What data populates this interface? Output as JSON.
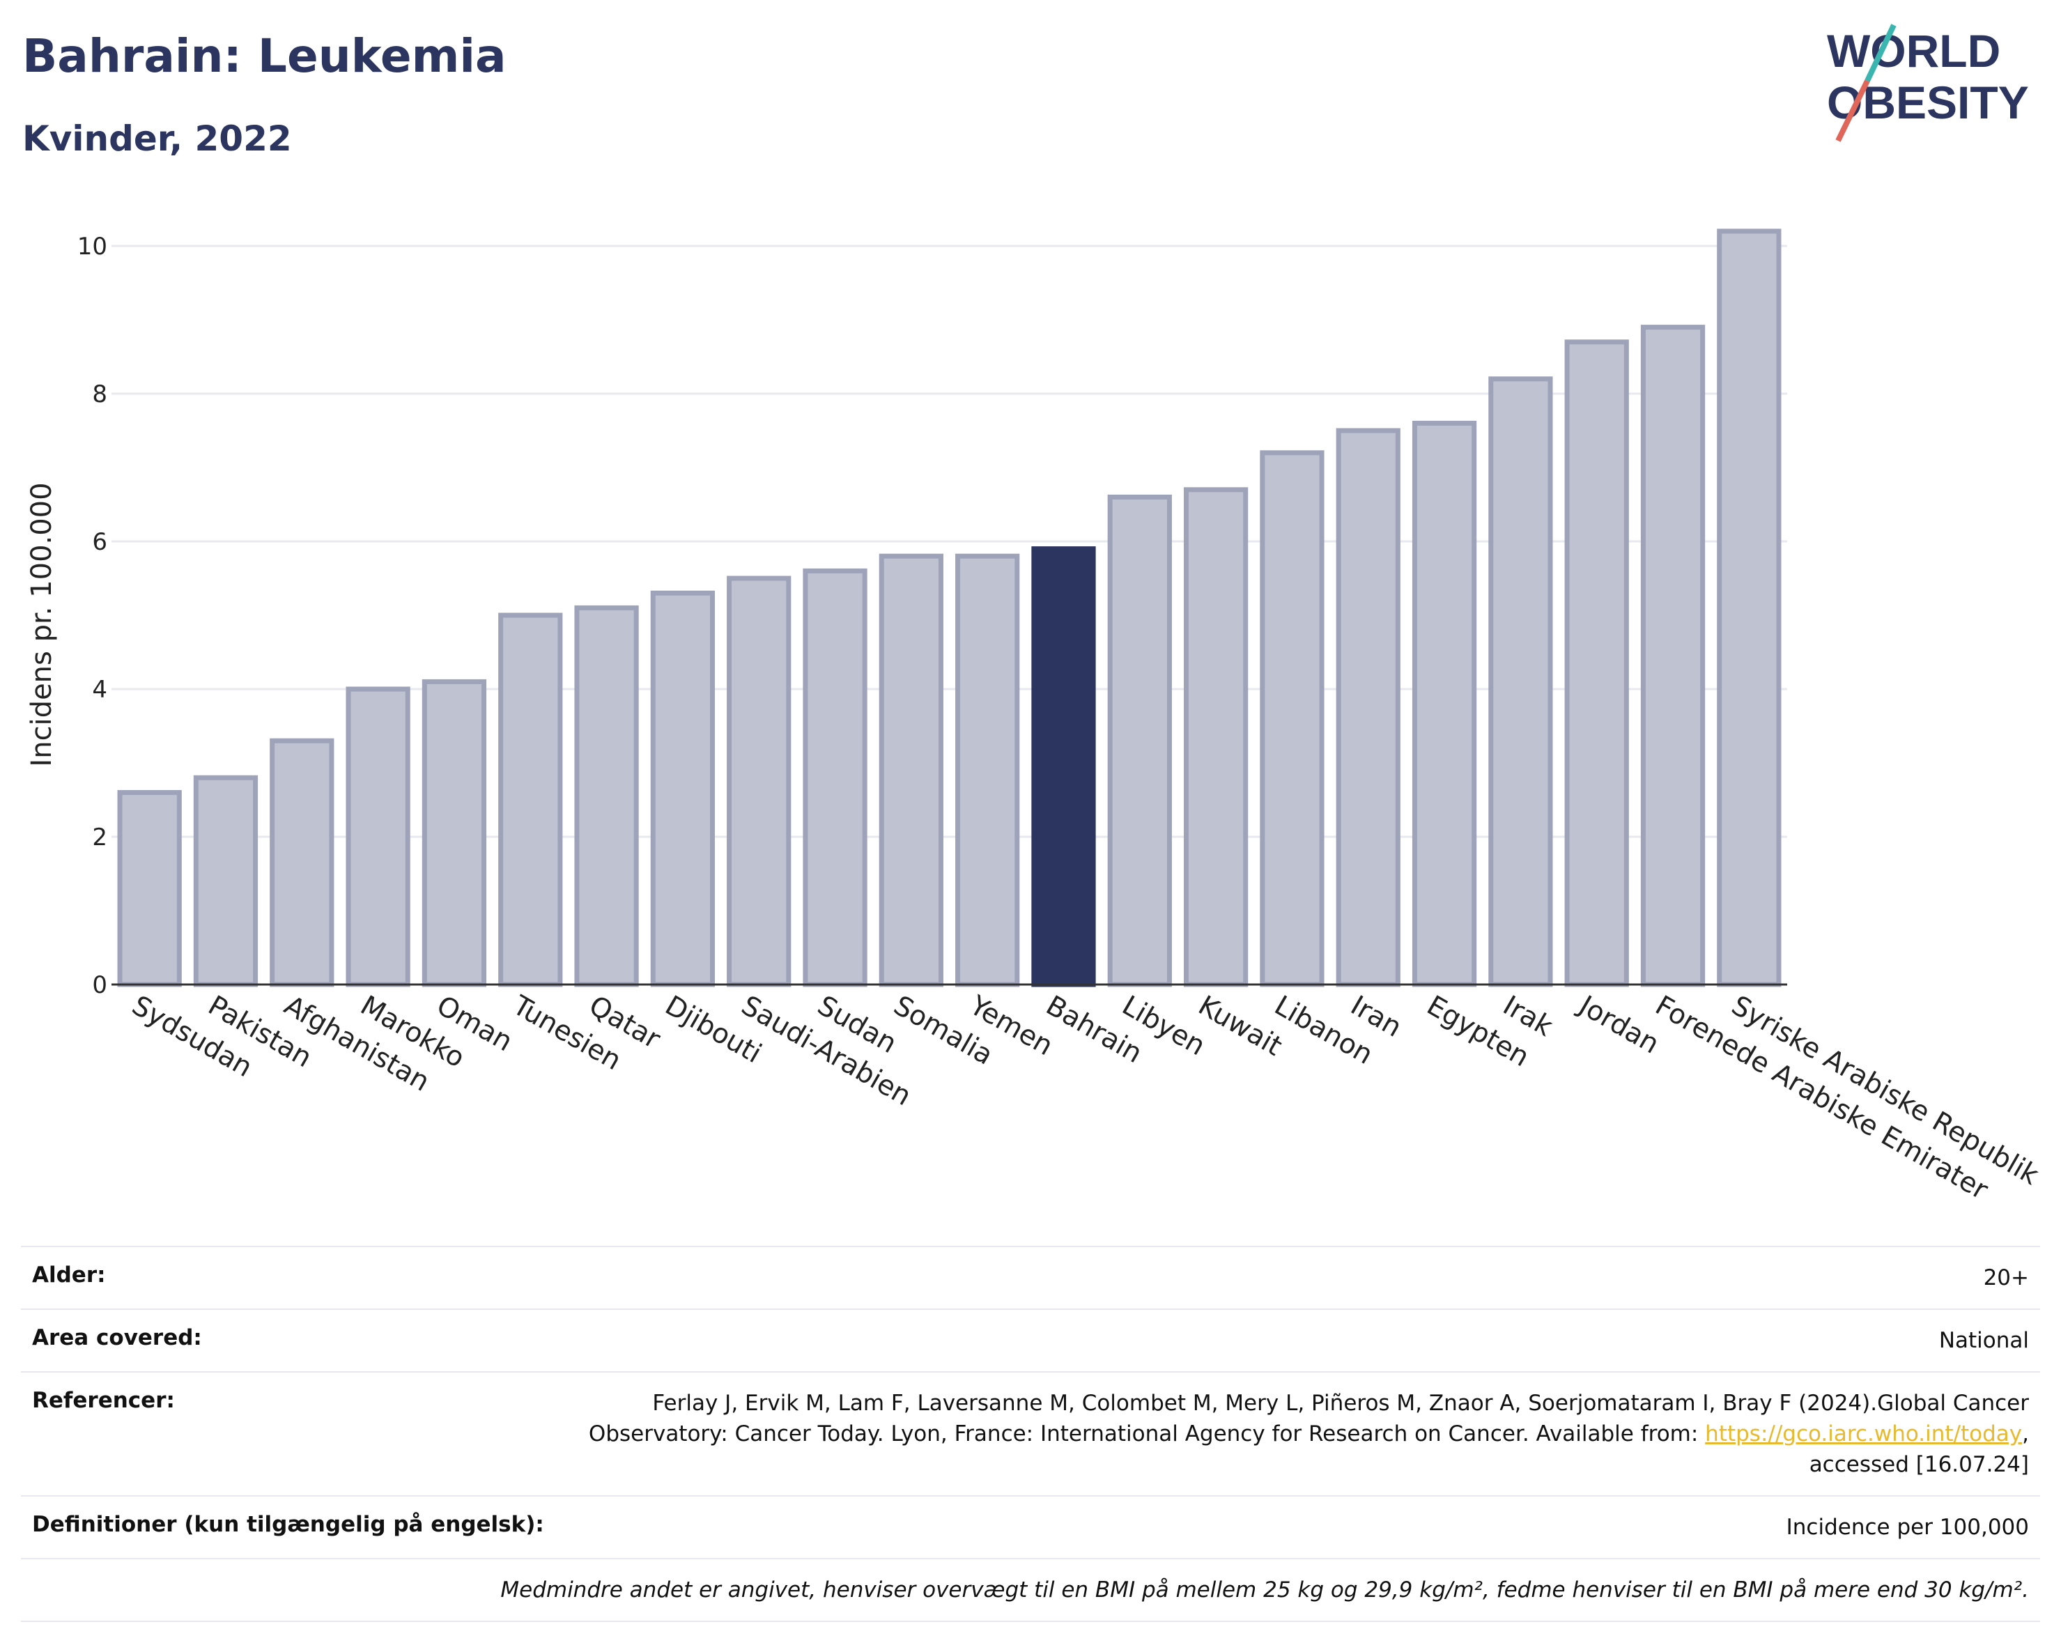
{
  "header": {
    "title": "Bahrain: Leukemia",
    "subtitle": "Kvinder, 2022"
  },
  "logo": {
    "line1": "WORLD",
    "line2": "OBESITY"
  },
  "colors": {
    "bar": "#bfc2d0",
    "bar_stroke": "#9ea3ba",
    "highlight": "#2b3560",
    "grid": "#e8e9ef",
    "logo_text": "#2b3560",
    "logo_slash_top": "#3ab5b0",
    "logo_slash_bottom": "#e0665a",
    "link": "#e8b92c"
  },
  "chart_data": {
    "type": "bar",
    "ylabel": "Incidens pr. 100.000",
    "ylim": [
      0,
      10.5
    ],
    "yticks": [
      0,
      2,
      4,
      6,
      8,
      10
    ],
    "grid": true,
    "highlight": "Bahrain",
    "categories": [
      "Sydsudan",
      "Pakistan",
      "Afghanistan",
      "Marokko",
      "Oman",
      "Tunesien",
      "Qatar",
      "Djibouti",
      "Saudi-Arabien",
      "Sudan",
      "Somalia",
      "Yemen",
      "Bahrain",
      "Libyen",
      "Kuwait",
      "Libanon",
      "Iran",
      "Egypten",
      "Irak",
      "Jordan",
      "Forenede Arabiske Emirater",
      "Syriske Arabiske Republik"
    ],
    "values": [
      2.6,
      2.8,
      3.3,
      4.0,
      4.1,
      5.0,
      5.1,
      5.3,
      5.5,
      5.6,
      5.8,
      5.8,
      5.9,
      6.6,
      6.7,
      7.2,
      7.5,
      7.6,
      8.2,
      8.7,
      8.9,
      10.2
    ]
  },
  "info": {
    "age_label": "Alder:",
    "age_value": "20+",
    "area_label": "Area covered:",
    "area_value": "National",
    "ref_label": "Referencer:",
    "ref_text_1": "Ferlay J, Ervik M, Lam F, Laversanne M, Colombet M, Mery L, Piñeros M, Znaor A, Soerjomataram I, Bray F (2024).Global Cancer Observatory: Cancer Today. Lyon, France: International Agency for Research on Cancer. Available from: ",
    "ref_link": "https://gco.iarc.who.int/today",
    "ref_text_2": ", accessed [16.07.24]",
    "def_label": "Definitioner (kun tilgængelig på engelsk):",
    "def_value": "Incidence per 100,000",
    "note": "Medmindre andet er angivet, henviser overvægt til en BMI på mellem 25 kg og 29,9 kg/m², fedme henviser til en BMI på mere end 30 kg/m²."
  }
}
